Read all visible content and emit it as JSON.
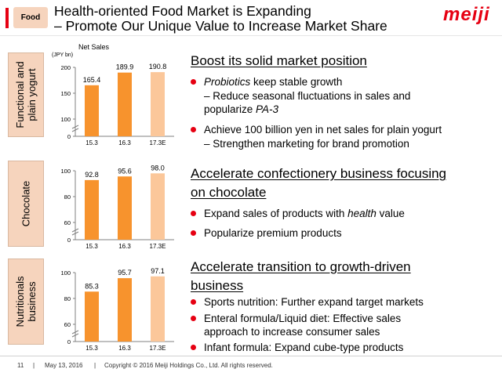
{
  "header": {
    "tag": "Food",
    "title_line1": "Health-oriented Food Market is Expanding",
    "title_line2": "– Promote Our Unique Value to Increase Market Share",
    "logo": "meiji"
  },
  "chart_title": "Net Sales",
  "unit": "(JPY bn)",
  "colors": {
    "bar_actual": "#f7932d",
    "bar_estimate": "#fbc79a",
    "accent": "#e60012",
    "label_bg": "#f6d4bd"
  },
  "chart_data": [
    {
      "type": "bar",
      "side_label": "Functional and plain yogurt",
      "categories": [
        "15.3",
        "16.3",
        "17.3E"
      ],
      "values": [
        165.4,
        189.9,
        190.8
      ],
      "value_labels": [
        "165.4",
        "189.9",
        "190.8"
      ],
      "yticks": [
        "0",
        "100",
        "150",
        "200"
      ],
      "ylim": [
        100,
        200
      ],
      "axis_break": true
    },
    {
      "type": "bar",
      "side_label": "Chocolate",
      "categories": [
        "15.3",
        "16.3",
        "17.3E"
      ],
      "values": [
        92.8,
        95.6,
        98.0
      ],
      "value_labels": [
        "92.8",
        "95.6",
        "98.0"
      ],
      "yticks": [
        "0",
        "60",
        "80",
        "100"
      ],
      "ylim": [
        60,
        100
      ],
      "axis_break": true
    },
    {
      "type": "bar",
      "side_label_line1": "Nutritionals",
      "side_label_line2": "business",
      "categories": [
        "15.3",
        "16.3",
        "17.3E"
      ],
      "values": [
        85.3,
        95.7,
        97.1
      ],
      "value_labels": [
        "85.3",
        "95.7",
        "97.1"
      ],
      "yticks": [
        "0",
        "60",
        "80",
        "100"
      ],
      "ylim": [
        60,
        100
      ],
      "axis_break": true
    }
  ],
  "sections": [
    {
      "heading": "Boost its solid market position",
      "b1_em": "Probiotics",
      "b1_rest": " keep stable growth",
      "b1_sub1": "– Reduce seasonal fluctuations in sales and",
      "b1_sub2_pre": "popularize ",
      "b1_sub2_em": "PA-3",
      "b2": "Achieve 100 billion yen in net sales for plain yogurt",
      "b2_sub": "– Strengthen marketing for brand promotion"
    },
    {
      "heading_line1": "Accelerate confectionery business focusing",
      "heading_line2": "on chocolate",
      "b1_pre": "Expand sales of products with ",
      "b1_em": "health",
      "b1_post": " value",
      "b2": "Popularize premium products"
    },
    {
      "heading_line1": "Accelerate transition to growth-driven",
      "heading_line2": "business",
      "b1": "Sports nutrition: Further expand target markets",
      "b2_line1": "Enteral formula/Liquid diet: Effective sales",
      "b2_line2": "approach to increase consumer sales",
      "b3": "Infant formula: Expand cube-type products"
    }
  ],
  "footer": {
    "page": "11",
    "date": "May 13, 2016",
    "copyright": "Copyright © 2016 Meiji Holdings Co., Ltd. All rights reserved."
  }
}
